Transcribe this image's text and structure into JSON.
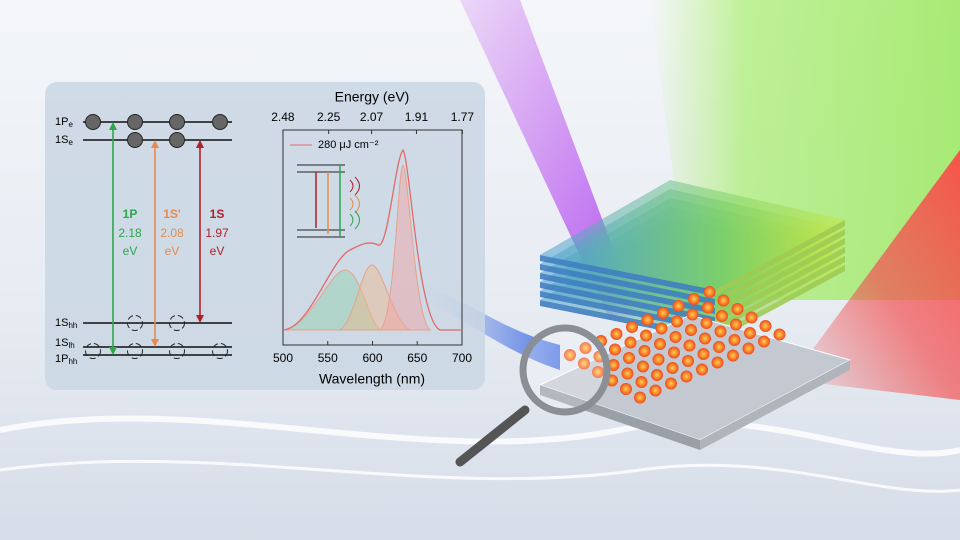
{
  "energy_diagram": {
    "levels": [
      {
        "main": "1P",
        "sub": "e"
      },
      {
        "main": "1S",
        "sub": "e"
      },
      {
        "main": "1S",
        "sub": "hh"
      },
      {
        "main": "1S",
        "sub": "lh"
      },
      {
        "main": "1P",
        "sub": "hh"
      }
    ],
    "transitions": [
      {
        "name": "1P",
        "energy": 2.18,
        "unit": "eV"
      },
      {
        "name": "1S'",
        "energy": 2.08,
        "unit": "eV"
      },
      {
        "name": "1S",
        "energy": 1.97,
        "unit": "eV"
      }
    ]
  },
  "spectrum": {
    "top_axis_title": "Energy (eV)",
    "x_axis_title": "Wavelength (nm)",
    "xlim": [
      500,
      700
    ],
    "xticks": [
      500,
      550,
      600,
      650,
      700
    ],
    "top_ticks": [
      2.48,
      2.25,
      2.07,
      1.91,
      1.77
    ],
    "legend": "280 μJ cm⁻²"
  }
}
